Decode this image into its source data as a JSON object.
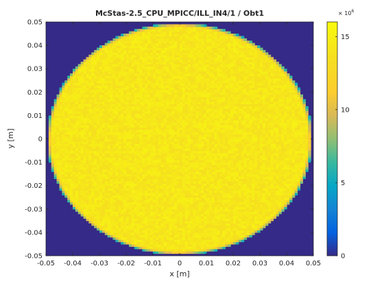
{
  "chart_data": {
    "type": "heatmap",
    "title": "McStas-2.5_CPU_MPICC/ILL_IN4/1 / Obt1",
    "xlabel": "x [m]",
    "ylabel": "y [m]",
    "xlim": [
      -0.05,
      0.05
    ],
    "ylim": [
      -0.05,
      0.05
    ],
    "xticks": [
      "-0.05",
      "-0.04",
      "-0.03",
      "-0.02",
      "-0.01",
      "0",
      "0.01",
      "0.02",
      "0.03",
      "0.04",
      "0.05"
    ],
    "yticks": [
      "-0.05",
      "-0.04",
      "-0.03",
      "-0.02",
      "-0.01",
      "0",
      "0.01",
      "0.02",
      "0.03",
      "0.04",
      "0.05"
    ],
    "colorbar": {
      "range": [
        0,
        16000000
      ],
      "ticks": [
        "0",
        "5",
        "10",
        "15"
      ],
      "tick_values": [
        0,
        5000000,
        10000000,
        15000000
      ],
      "exponent_label": "× 10",
      "exponent": "6"
    },
    "colormap": "parula",
    "bins": 100,
    "pattern": {
      "shape": "circle",
      "center": [
        0,
        0
      ],
      "radius": 0.0495,
      "inside_mean_value": 14200000,
      "inside_noise_value": 900000,
      "outside_value": 0
    },
    "grid": false,
    "colors": {
      "low": "#352a87",
      "high": "#f9fb0e"
    }
  }
}
